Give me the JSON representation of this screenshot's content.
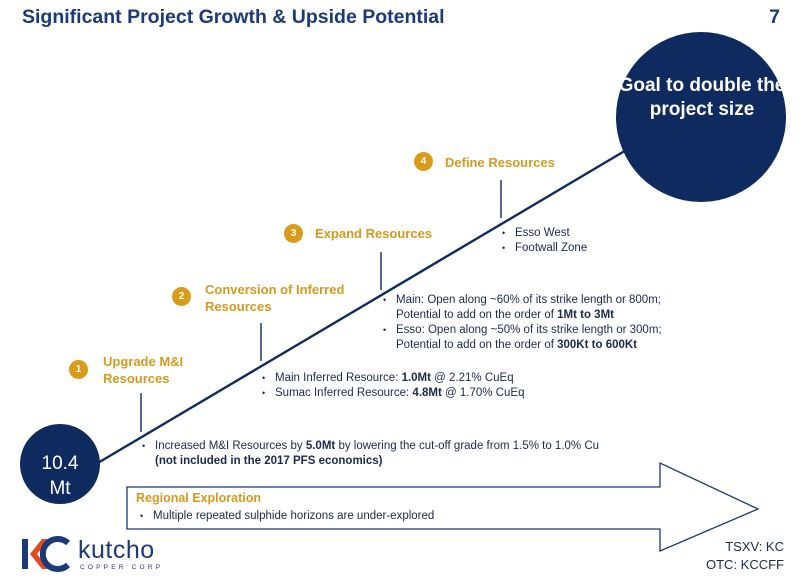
{
  "title": "Significant Project Growth & Upside Potential",
  "page_number": "7",
  "goal": {
    "text": "Goal to double the project size",
    "color": "#0f2a5e"
  },
  "start": {
    "value": "10.4",
    "unit": "Mt",
    "color": "#0f2a5e"
  },
  "accent_color": "#d99b1a",
  "steps": [
    {
      "number": "1",
      "label": "Upgrade M&I Resources"
    },
    {
      "number": "2",
      "label": "Conversion of Inferred Resources"
    },
    {
      "number": "3",
      "label": "Expand Resources"
    },
    {
      "number": "4",
      "label": "Define Resources"
    }
  ],
  "details": {
    "step1": {
      "pre": "Increased M&I Resources by ",
      "bold": "5.0Mt",
      "post": " by lowering the cut-off grade from 1.5% to 1.0% Cu",
      "note": "(not included in the 2017 PFS economics)"
    },
    "step2": [
      {
        "pre": "Main Inferred Resource: ",
        "bold": "1.0Mt",
        "post": " @ 2.21% CuEq"
      },
      {
        "pre": "Sumac Inferred Resource: ",
        "bold": "4.8Mt",
        "post": " @ 1.70% CuEq"
      }
    ],
    "step3": [
      {
        "line1": "Main: Open along ~60% of its strike length or 800m;",
        "pre2": "Potential to add on the order of ",
        "bold": "1Mt to 3Mt"
      },
      {
        "line1": "Esso: Open along ~50% of its strike length or 300m;",
        "pre2": "Potential to add on the order of ",
        "bold": "300Kt to 600Kt"
      }
    ],
    "step4": [
      "Esso West",
      "Footwall Zone"
    ]
  },
  "regional": {
    "title": "Regional Exploration",
    "items": [
      "Multiple repeated sulphide horizons are under-explored"
    ]
  },
  "logo": {
    "word": "kutcho",
    "sub": "COPPER CORP",
    "mark": "KC"
  },
  "tickers": [
    "TSXV: KC",
    "OTC: KCCFF"
  ]
}
